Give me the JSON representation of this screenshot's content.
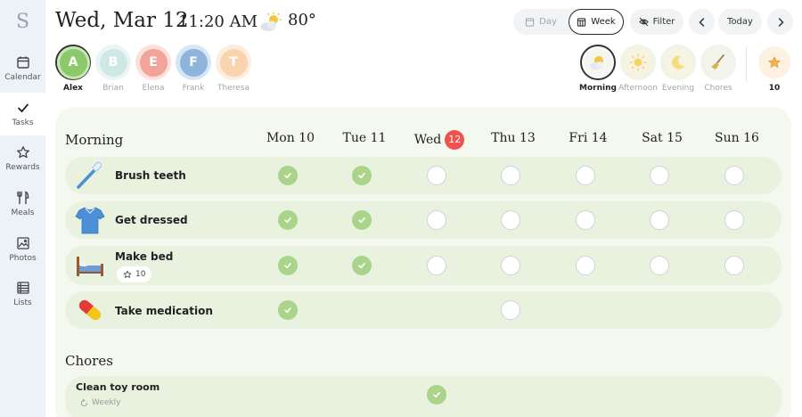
{
  "app": {
    "logo": "S"
  },
  "sidebar": {
    "items": [
      {
        "label": "Calendar",
        "icon": "calendar-icon"
      },
      {
        "label": "Tasks",
        "icon": "check-icon",
        "active": true
      },
      {
        "label": "Rewards",
        "icon": "star-outline-icon"
      },
      {
        "label": "Meals",
        "icon": "fork-knife-icon"
      },
      {
        "label": "Photos",
        "icon": "image-icon"
      },
      {
        "label": "Lists",
        "icon": "list-icon"
      }
    ]
  },
  "header": {
    "date": "Wed, Mar 12",
    "time": "11:20 AM",
    "weather_icon": "partly-cloudy-icon",
    "temperature": "80°",
    "view_day": "Day",
    "view_week": "Week",
    "filter": "Filter",
    "today": "Today"
  },
  "people": [
    {
      "initial": "A",
      "name": "Alex",
      "color": "#8bc96a",
      "ring": "#c9e6b6",
      "selected": true
    },
    {
      "initial": "B",
      "name": "Brian",
      "color": "#cfe8e6",
      "ring": "#eaf5f4",
      "selected": false
    },
    {
      "initial": "E",
      "name": "Elena",
      "color": "#f2a39a",
      "ring": "#fbe0dc",
      "selected": false
    },
    {
      "initial": "F",
      "name": "Frank",
      "color": "#8fb4dc",
      "ring": "#d7e6f4",
      "selected": false
    },
    {
      "initial": "T",
      "name": "Theresa",
      "color": "#fad4ae",
      "ring": "#fdece0",
      "selected": false
    }
  ],
  "routines": [
    {
      "name": "Morning",
      "icon": "sun-cloud-icon",
      "selected": true
    },
    {
      "name": "Afternoon",
      "icon": "sun-icon",
      "selected": false
    },
    {
      "name": "Evening",
      "icon": "moon-icon",
      "selected": false
    },
    {
      "name": "Chores",
      "icon": "broom-icon",
      "selected": false
    }
  ],
  "stars_total": "10",
  "week": {
    "days": [
      {
        "label": "Mon 10"
      },
      {
        "label": "Tue 11"
      },
      {
        "label": "Wed",
        "badge": "12",
        "today": true
      },
      {
        "label": "Thu 13"
      },
      {
        "label": "Fri 14"
      },
      {
        "label": "Sat 15"
      },
      {
        "label": "Sun 16"
      }
    ]
  },
  "morning": {
    "title": "Morning",
    "tasks": [
      {
        "name": "Brush teeth",
        "icon": "toothbrush-icon",
        "status": [
          "done",
          "done",
          "empty",
          "empty",
          "empty",
          "empty",
          "empty"
        ]
      },
      {
        "name": "Get dressed",
        "icon": "shirt-icon",
        "status": [
          "done",
          "done",
          "empty",
          "empty",
          "empty",
          "empty",
          "empty"
        ]
      },
      {
        "name": "Make bed",
        "icon": "bed-icon",
        "points": "10",
        "status": [
          "done",
          "done",
          "empty",
          "empty",
          "empty",
          "empty",
          "empty"
        ]
      },
      {
        "name": "Take medication",
        "icon": "pill-icon",
        "status": [
          "done",
          null,
          null,
          "empty",
          null,
          null,
          null
        ]
      }
    ]
  },
  "chores": {
    "title": "Chores",
    "tasks": [
      {
        "name": "Clean toy room",
        "repeat": "Weekly",
        "status": [
          null,
          null,
          "done",
          null,
          null,
          null,
          null
        ]
      }
    ]
  },
  "colors": {
    "done": "#a9d48a",
    "panel": "#f4f8ee",
    "row": "#e9f2df",
    "today_badge": "#ef5350"
  }
}
